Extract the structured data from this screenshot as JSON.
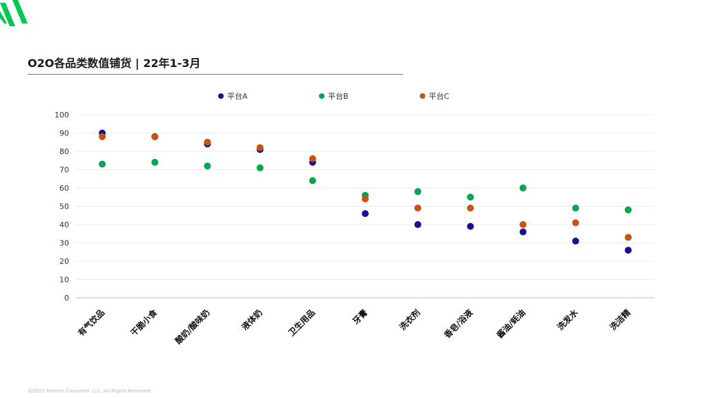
{
  "header": {
    "title": "O2O各品类数值铺货 | 22年1-3月"
  },
  "logo": {
    "name": "nielsen-logo",
    "color": "#00C853"
  },
  "footer": {
    "copyright": "@2022 Nielsen Consumer LLC. All Rights Reserved."
  },
  "chart_data": {
    "type": "scatter",
    "title": "O2O各品类数值铺货 | 22年1-3月",
    "xlabel": "",
    "ylabel": "",
    "ylim": [
      0,
      100
    ],
    "yticks": [
      0,
      10,
      20,
      30,
      40,
      50,
      60,
      70,
      80,
      90,
      100
    ],
    "grid": true,
    "legend_position": "top",
    "categories": [
      "有气饮品",
      "干脆小食",
      "酸奶/酸味奶",
      "液体奶",
      "卫生用品",
      "牙膏",
      "洗衣剂",
      "香皂/浴液",
      "酱油/蚝油",
      "洗发水",
      "洗洁精"
    ],
    "series": [
      {
        "name": "平台A",
        "color": "#1A0E96",
        "values": [
          90,
          88,
          84,
          81,
          74,
          46,
          40,
          39,
          36,
          31,
          26
        ]
      },
      {
        "name": "平台B",
        "color": "#00A650",
        "values": [
          73,
          74,
          72,
          71,
          64,
          56,
          58,
          55,
          60,
          49,
          48
        ]
      },
      {
        "name": "平台C",
        "color": "#C8520E",
        "values": [
          88,
          88,
          85,
          82,
          76,
          54,
          49,
          49,
          40,
          41,
          33
        ]
      }
    ]
  }
}
